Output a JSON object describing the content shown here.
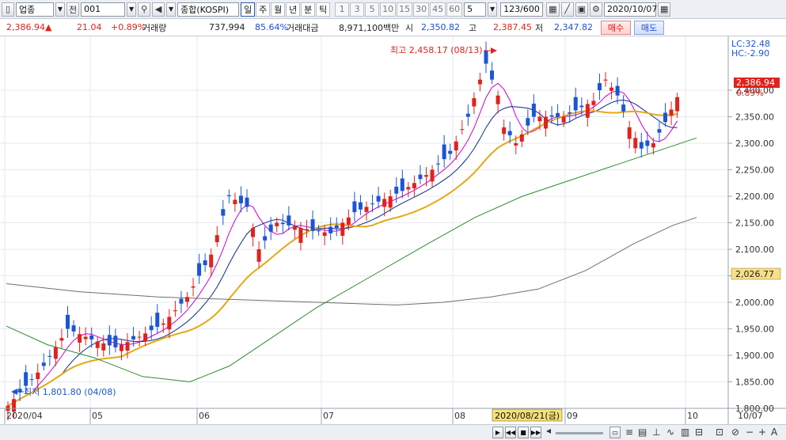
{
  "toolbar": {
    "market_select": "업종",
    "prev_label": "전",
    "code": "001",
    "index_name": "종합(KOSPI)",
    "periods": [
      "일",
      "주",
      "월",
      "년",
      "분",
      "틱"
    ],
    "selected_period": "일",
    "intervals": [
      "1",
      "3",
      "5",
      "10",
      "15",
      "30",
      "45",
      "60"
    ],
    "interval_value": "5",
    "count": "123",
    "count_total": "/600",
    "date": "2020/10/07"
  },
  "info": {
    "price": "2,386.94",
    "change_arrow": "▲",
    "change": "21.04",
    "change_pct": "+0.89%",
    "volume_label": "거래량",
    "volume": "737,994",
    "volume_pct": "85.64%",
    "amount_label": "거래대금",
    "amount": "8,971,100백만",
    "open_label": "시",
    "open": "2,350.82",
    "high_label": "고",
    "high": "2,387.45",
    "low_label": "저",
    "low": "2,347.82",
    "buy_label": "매수",
    "sell_label": "매도"
  },
  "chart": {
    "lc_label": "LC:32.48",
    "hc_label": "HC:-2.90",
    "price_tag": "2,386.94",
    "pct_tag": "0.89%",
    "ma_tag": "2,026.77",
    "cursor_date": "2020/08/21(금)",
    "max_annotation": "최고 2,458.17 (08/13)",
    "min_annotation": "최저 1,801.80 (04/08)",
    "y_ticks": [
      "2,400.00",
      "2,350.00",
      "2,300.00",
      "2,250.00",
      "2,200.00",
      "2,150.00",
      "2,100.00",
      "2,050.00",
      "2,000.00",
      "1,950.00",
      "1,900.00",
      "1,850.00",
      "1,800.00"
    ],
    "x_ticks": [
      "2020/04",
      "05",
      "06",
      "07",
      "08",
      "09",
      "10"
    ],
    "axis_date": "10/07",
    "colors": {
      "up": "#e0221c",
      "down": "#1b55d6",
      "ma5": "#cc00cc",
      "ma10": "#0a2a8a",
      "ma20": "#e6a817",
      "ma60": "#2e8b2e",
      "ma120": "#6e6e6e"
    }
  }
}
